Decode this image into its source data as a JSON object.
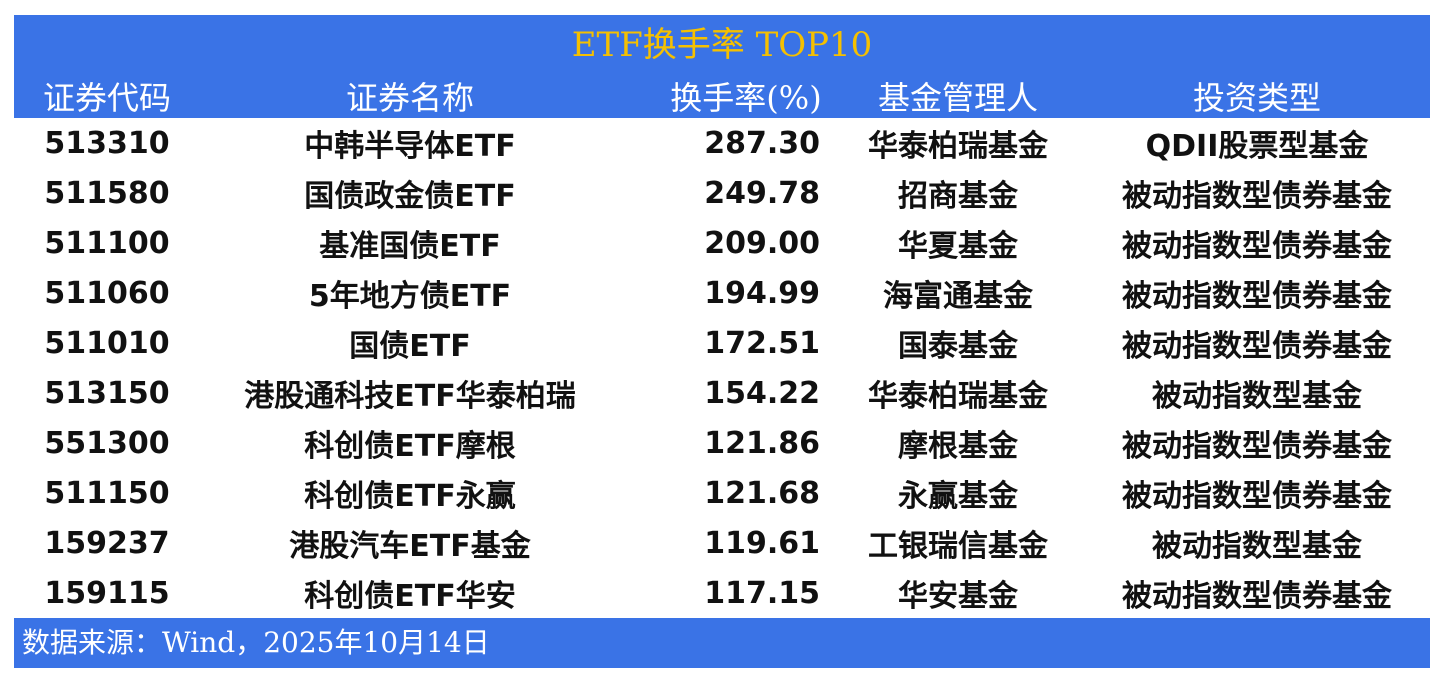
{
  "chart_data": {
    "type": "table",
    "title": "ETF换手率 TOP10",
    "columns": [
      "证券代码",
      "证券名称",
      "换手率(%)",
      "基金管理人",
      "投资类型"
    ],
    "rows": [
      [
        "513310",
        "中韩半导体ETF",
        "287.30",
        "华泰柏瑞基金",
        "QDII股票型基金"
      ],
      [
        "511580",
        "国债政金债ETF",
        "249.78",
        "招商基金",
        "被动指数型债券基金"
      ],
      [
        "511100",
        "基准国债ETF",
        "209.00",
        "华夏基金",
        "被动指数型债券基金"
      ],
      [
        "511060",
        "5年地方债ETF",
        "194.99",
        "海富通基金",
        "被动指数型债券基金"
      ],
      [
        "511010",
        "国债ETF",
        "172.51",
        "国泰基金",
        "被动指数型债券基金"
      ],
      [
        "513150",
        "港股通科技ETF华泰柏瑞",
        "154.22",
        "华泰柏瑞基金",
        "被动指数型基金"
      ],
      [
        "551300",
        "科创债ETF摩根",
        "121.86",
        "摩根基金",
        "被动指数型债券基金"
      ],
      [
        "511150",
        "科创债ETF永赢",
        "121.68",
        "永赢基金",
        "被动指数型债券基金"
      ],
      [
        "159237",
        "港股汽车ETF基金",
        "119.61",
        "工银瑞信基金",
        "被动指数型基金"
      ],
      [
        "159115",
        "科创债ETF华安",
        "117.15",
        "华安基金",
        "被动指数型债券基金"
      ]
    ],
    "source": "数据来源：Wind，2025年10月14日"
  },
  "colors": {
    "header_bg": "#3a73e6",
    "title": "#f5c000"
  }
}
